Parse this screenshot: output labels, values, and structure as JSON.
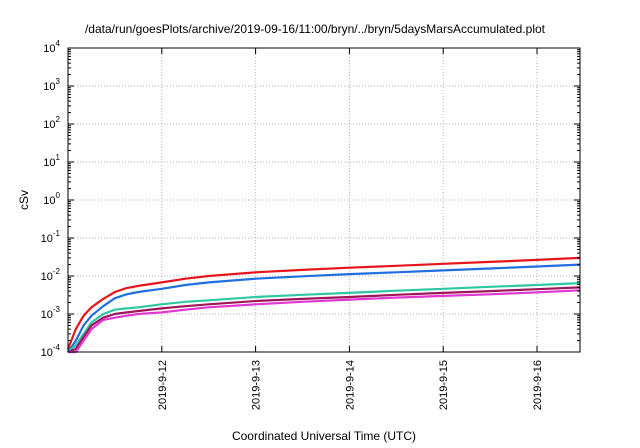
{
  "chart_data": {
    "type": "line",
    "title": "/data/run/goesPlots/archive/2019-09-16/11:00/bryn/../bryn/5daysMarsAccumulated.plot",
    "xlabel": "Coordinated Universal Time (UTC)",
    "ylabel": "cSv",
    "y_scale": "log",
    "ylim_exponent": [
      -4,
      4
    ],
    "y_ticks": [
      {
        "base": "10",
        "exp": "4"
      },
      {
        "base": "10",
        "exp": "3"
      },
      {
        "base": "10",
        "exp": "2"
      },
      {
        "base": "10",
        "exp": "1"
      },
      {
        "base": "10",
        "exp": "0"
      },
      {
        "base": "10",
        "exp": "-1"
      },
      {
        "base": "10",
        "exp": "-2"
      },
      {
        "base": "10",
        "exp": "-3"
      },
      {
        "base": "10",
        "exp": "-4"
      }
    ],
    "x_ticks": [
      "2019-9-12",
      "2019-9-13",
      "2019-9-14",
      "2019-9-15",
      "2019-9-16"
    ],
    "xlim": [
      "2019-09-11T00:00",
      "2019-09-16T11:00"
    ],
    "grid": true,
    "x": [
      "2019-09-11T00:00",
      "2019-09-11T02:00",
      "2019-09-11T04:00",
      "2019-09-11T06:00",
      "2019-09-11T09:00",
      "2019-09-11T12:00",
      "2019-09-11T15:00",
      "2019-09-11T18:00",
      "2019-09-12T00:00",
      "2019-09-12T06:00",
      "2019-09-12T12:00",
      "2019-09-13T00:00",
      "2019-09-13T12:00",
      "2019-09-14T00:00",
      "2019-09-14T12:00",
      "2019-09-15T00:00",
      "2019-09-15T12:00",
      "2019-09-16T00:00",
      "2019-09-16T11:00"
    ],
    "series": [
      {
        "color": "#e8141c",
        "values": [
          0.00012,
          0.0004,
          0.0009,
          0.0015,
          0.0025,
          0.0038,
          0.0048,
          0.0055,
          0.0068,
          0.0085,
          0.01,
          0.0125,
          0.0145,
          0.0165,
          0.0185,
          0.021,
          0.0235,
          0.0265,
          0.03
        ]
      },
      {
        "color": "#1f6fe0",
        "values": [
          0.0001,
          0.0002,
          0.0005,
          0.0009,
          0.0016,
          0.0026,
          0.0033,
          0.0038,
          0.0046,
          0.0058,
          0.0068,
          0.0085,
          0.0098,
          0.0112,
          0.0125,
          0.014,
          0.0158,
          0.0178,
          0.02
        ]
      },
      {
        "color": "#2fc8a4",
        "values": [
          0.0001,
          0.00015,
          0.0003,
          0.0006,
          0.001,
          0.0013,
          0.0014,
          0.0015,
          0.0018,
          0.0021,
          0.0023,
          0.0028,
          0.0032,
          0.0036,
          0.0041,
          0.0046,
          0.0052,
          0.0058,
          0.0065
        ]
      },
      {
        "color": "#a0155a",
        "values": [
          0.0001,
          0.00012,
          0.00025,
          0.0005,
          0.0008,
          0.001,
          0.0011,
          0.0012,
          0.0014,
          0.0016,
          0.0018,
          0.0022,
          0.0025,
          0.0028,
          0.0032,
          0.0036,
          0.004,
          0.0045,
          0.005
        ]
      },
      {
        "color": "#e038d0",
        "values": [
          0.0001,
          0.0001,
          0.0002,
          0.0004,
          0.0007,
          0.0008,
          0.0009,
          0.001,
          0.0011,
          0.0013,
          0.0015,
          0.0018,
          0.0021,
          0.0024,
          0.0027,
          0.003,
          0.0033,
          0.0037,
          0.0042
        ]
      }
    ]
  }
}
